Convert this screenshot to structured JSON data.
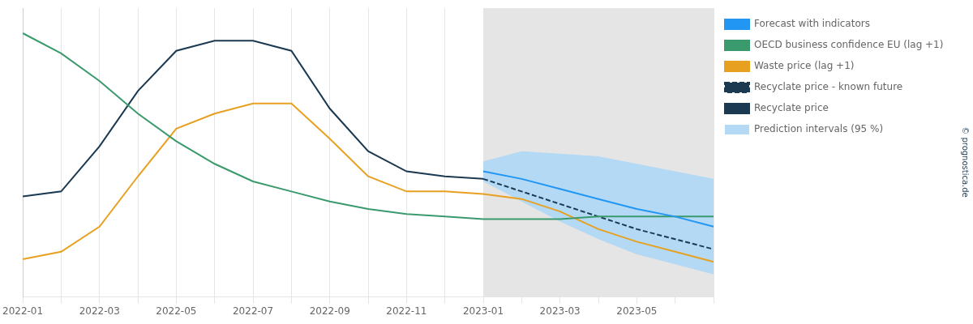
{
  "chart_data": {
    "type": "line",
    "categories": [
      "2022-01",
      null,
      "2022-03",
      null,
      "2022-05",
      null,
      "2022-07",
      null,
      "2022-09",
      null,
      "2022-11",
      null,
      "2023-01",
      null,
      "2023-03",
      null,
      "2023-05",
      null,
      null
    ],
    "series": [
      {
        "name": "Recyclate price",
        "color": "#1b3a52",
        "line_style": "solid",
        "values": [
          30,
          32,
          50,
          72,
          88,
          92,
          92,
          88,
          65,
          48,
          40,
          38,
          37,
          null,
          null,
          null,
          null,
          null,
          null
        ]
      },
      {
        "name": "Recyclate price - known future",
        "color": "#1b3a52",
        "line_style": "dashed",
        "values": [
          null,
          null,
          null,
          null,
          null,
          null,
          null,
          null,
          null,
          null,
          null,
          null,
          37,
          32,
          27,
          22,
          17,
          13,
          9
        ]
      },
      {
        "name": "Waste price (lag +1)",
        "color": "#e8a020",
        "line_style": "solid",
        "values": [
          5,
          8,
          18,
          38,
          57,
          63,
          67,
          67,
          53,
          38,
          32,
          32,
          31,
          29,
          24,
          17,
          12,
          8,
          4
        ]
      },
      {
        "name": "OECD business confidence EU (lag +1)",
        "color": "#3a9a6e",
        "line_style": "solid",
        "values": [
          95,
          87,
          76,
          63,
          52,
          43,
          36,
          32,
          28,
          25,
          23,
          22,
          21,
          21,
          21,
          22,
          22,
          22,
          22
        ]
      },
      {
        "name": "Forecast with indicators",
        "color": "#2196f3",
        "line_style": "solid",
        "values": [
          null,
          null,
          null,
          null,
          null,
          null,
          null,
          null,
          null,
          null,
          null,
          null,
          40,
          37,
          33,
          29,
          25,
          22,
          18
        ]
      },
      {
        "name": "Prediction intervals (95 %)",
        "color": "#b3d9f5",
        "type": "area",
        "lower": [
          null,
          null,
          null,
          null,
          null,
          null,
          null,
          null,
          null,
          null,
          null,
          null,
          36,
          28,
          20,
          13,
          7,
          3,
          -1
        ],
        "upper": [
          null,
          null,
          null,
          null,
          null,
          null,
          null,
          null,
          null,
          null,
          null,
          null,
          44,
          48,
          47,
          46,
          43,
          40,
          37
        ]
      }
    ],
    "ylim": [
      -10,
      105
    ],
    "tick_labels": "x",
    "grid": "x",
    "legend": "right",
    "annotations": [
      {
        "type": "span",
        "from": 12,
        "to": 18,
        "color": "#e5e5e5"
      },
      {
        "type": "text",
        "text": "© prognostica.de",
        "color": "#1b3a52"
      }
    ]
  }
}
